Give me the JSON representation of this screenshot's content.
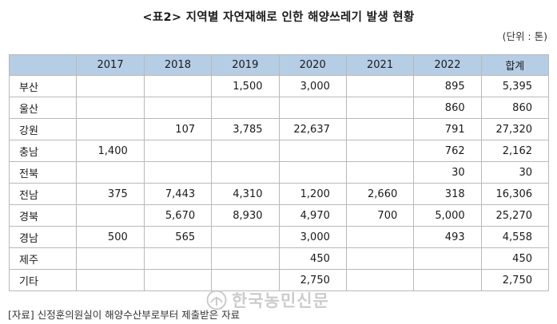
{
  "title": "<표2> 지역별 자연재해로 인한 해양쓰레기 발생 현황",
  "unit": "(단위 : 톤)",
  "table": {
    "columns": [
      "",
      "2017",
      "2018",
      "2019",
      "2020",
      "2021",
      "2022",
      "합계"
    ],
    "rows": [
      [
        "부산",
        "",
        "",
        "1,500",
        "3,000",
        "",
        "895",
        "5,395"
      ],
      [
        "울산",
        "",
        "",
        "",
        "",
        "",
        "860",
        "860"
      ],
      [
        "강원",
        "",
        "107",
        "3,785",
        "22,637",
        "",
        "791",
        "27,320"
      ],
      [
        "충남",
        "1,400",
        "",
        "",
        "",
        "",
        "762",
        "2,162"
      ],
      [
        "전북",
        "",
        "",
        "",
        "",
        "",
        "30",
        "30"
      ],
      [
        "전남",
        "375",
        "7,443",
        "4,310",
        "1,200",
        "2,660",
        "318",
        "16,306"
      ],
      [
        "경북",
        "",
        "5,670",
        "8,930",
        "4,970",
        "700",
        "5,000",
        "25,270"
      ],
      [
        "경남",
        "500",
        "565",
        "",
        "3,000",
        "",
        "493",
        "4,558"
      ],
      [
        "제주",
        "",
        "",
        "",
        "450",
        "",
        "",
        "450"
      ],
      [
        "기타",
        "",
        "",
        "",
        "2,750",
        "",
        "",
        "2,750"
      ]
    ]
  },
  "source": "[자료] 신정훈의원실이 해양수산부로부터 제출받은 자료",
  "watermark": "한국농민신문",
  "colors": {
    "header_bg": "#b6cde6",
    "border": "#b9b9b9"
  }
}
